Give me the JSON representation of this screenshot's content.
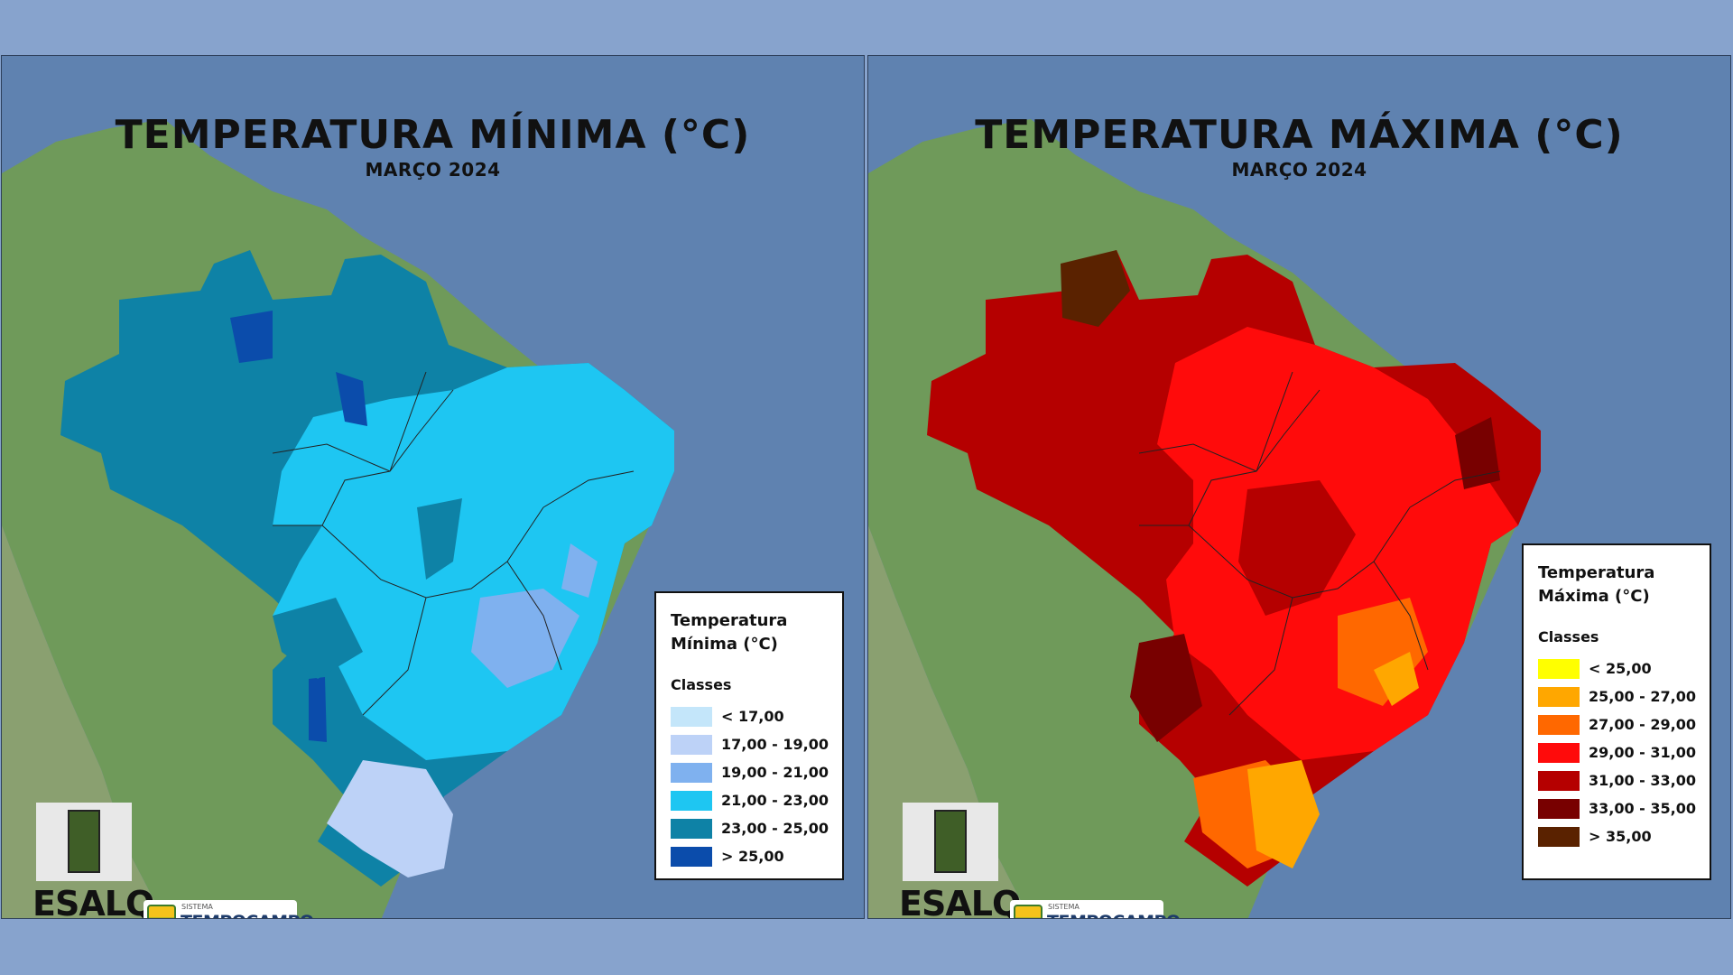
{
  "panels": [
    {
      "title": "TEMPERATURA MÍNIMA (°C)",
      "subtitle": "MARÇO 2024",
      "legend": {
        "title": "Temperatura\nMínima (°C)",
        "classes_label": "Classes",
        "items": [
          {
            "label": "< 17,00",
            "color": "#c4e6fa"
          },
          {
            "label": "17,00 - 19,00",
            "color": "#bdd2f7"
          },
          {
            "label": "19,00 - 21,00",
            "color": "#7fb1ef"
          },
          {
            "label": "21,00 - 23,00",
            "color": "#1ec6f2"
          },
          {
            "label": "23,00 - 25,00",
            "color": "#0e82a6"
          },
          {
            "label": "> 25,00",
            "color": "#0b4cab"
          }
        ]
      }
    },
    {
      "title": "TEMPERATURA MÁXIMA (°C)",
      "subtitle": "MARÇO 2024",
      "legend": {
        "title": "Temperatura\nMáxima (°C)",
        "classes_label": "Classes",
        "items": [
          {
            "label": "< 25,00",
            "color": "#ffff00"
          },
          {
            "label": "25,00 - 27,00",
            "color": "#ffa700"
          },
          {
            "label": "27,00 - 29,00",
            "color": "#ff6800"
          },
          {
            "label": "29,00 - 31,00",
            "color": "#ff0b0b"
          },
          {
            "label": "31,00 - 33,00",
            "color": "#b50000"
          },
          {
            "label": "33,00 - 35,00",
            "color": "#780000"
          },
          {
            "label": "> 35,00",
            "color": "#5a2200"
          }
        ]
      }
    }
  ],
  "logos": {
    "esalq": "ESALQ",
    "tempocampo_small": "SISTEMA",
    "tempocampo_big": "TEMPOCAMPO"
  },
  "icons": [
    "esalq-shield-icon",
    "tempocampo-icon"
  ]
}
